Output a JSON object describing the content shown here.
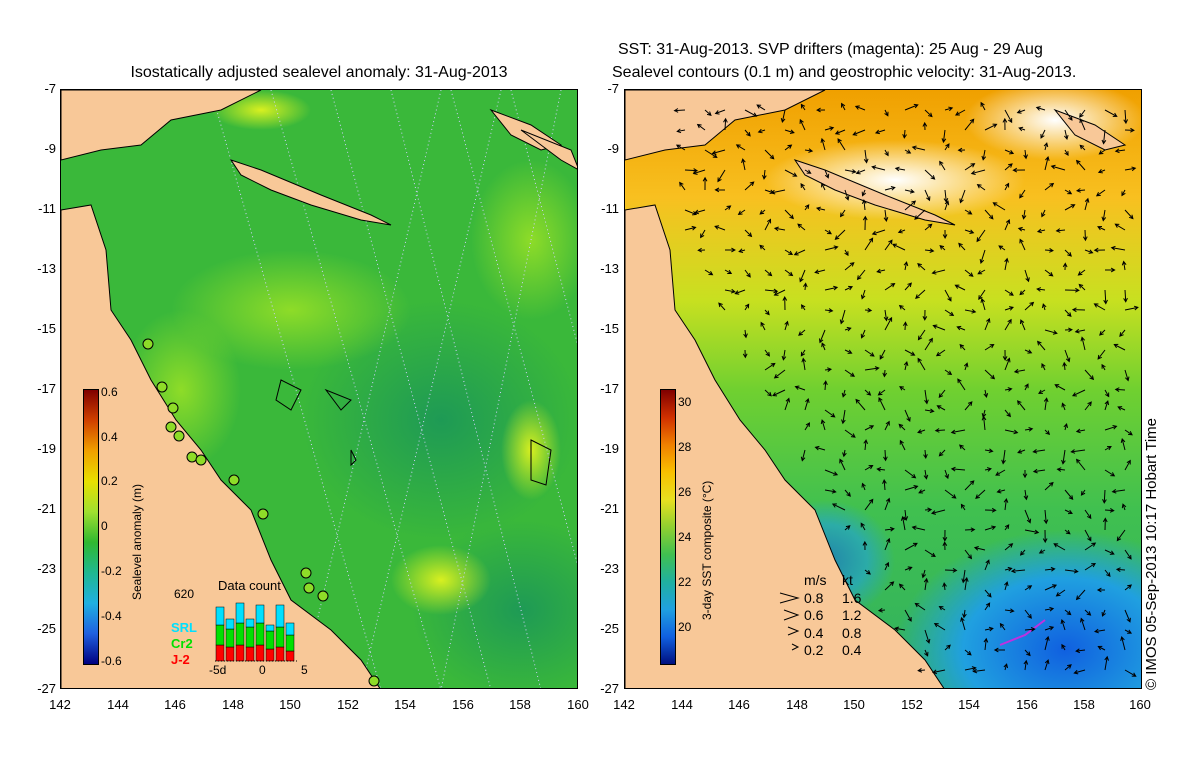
{
  "left_panel": {
    "title": "Isostatically adjusted sealevel anomaly: 31-Aug-2013",
    "colorbar": {
      "label": "Sealevel anomaly (m)",
      "ticks": [
        "0.6",
        "0.4",
        "0.2",
        "0",
        "-0.2",
        "-0.4",
        "-0.6"
      ]
    },
    "data_count": {
      "title": "Data count",
      "max_label": "620",
      "legend": [
        {
          "name": "SRL",
          "color": "#00e0ff"
        },
        {
          "name": "Cr2",
          "color": "#00e000"
        },
        {
          "name": "J-2",
          "color": "#ff0000"
        }
      ],
      "x_labels": [
        "-5d",
        "0",
        "5"
      ]
    }
  },
  "right_panel": {
    "title_line1": "SST: 31-Aug-2013. SVP drifters (magenta): 25 Aug - 29 Aug",
    "title_line2": "Sealevel contours (0.1 m) and geostrophic velocity: 31-Aug-2013.",
    "colorbar": {
      "label": "3-day SST composite (°C)",
      "ticks": [
        "30",
        "28",
        "26",
        "24",
        "22",
        "20"
      ]
    },
    "velocity_legend": {
      "header_ms": "m/s",
      "header_kt": "kt",
      "rows": [
        {
          "ms": "0.8",
          "kt": "1.6"
        },
        {
          "ms": "0.6",
          "kt": "1.2"
        },
        {
          "ms": "0.4",
          "kt": "0.8"
        },
        {
          "ms": "0.2",
          "kt": "0.4"
        }
      ]
    }
  },
  "axes": {
    "lat_labels": [
      "-7",
      "-9",
      "-11",
      "-13",
      "-15",
      "-17",
      "-19",
      "-21",
      "-23",
      "-25",
      "-27"
    ],
    "lon_labels": [
      "142",
      "144",
      "146",
      "148",
      "150",
      "152",
      "154",
      "156",
      "158",
      "160"
    ]
  },
  "footer": {
    "timestamp": "© IMOS 05-Sep-2013 10:17 Hobart Time"
  },
  "colors": {
    "land": "#f8c898",
    "sla_base": "#33b833",
    "sst_base": "#44c044"
  }
}
